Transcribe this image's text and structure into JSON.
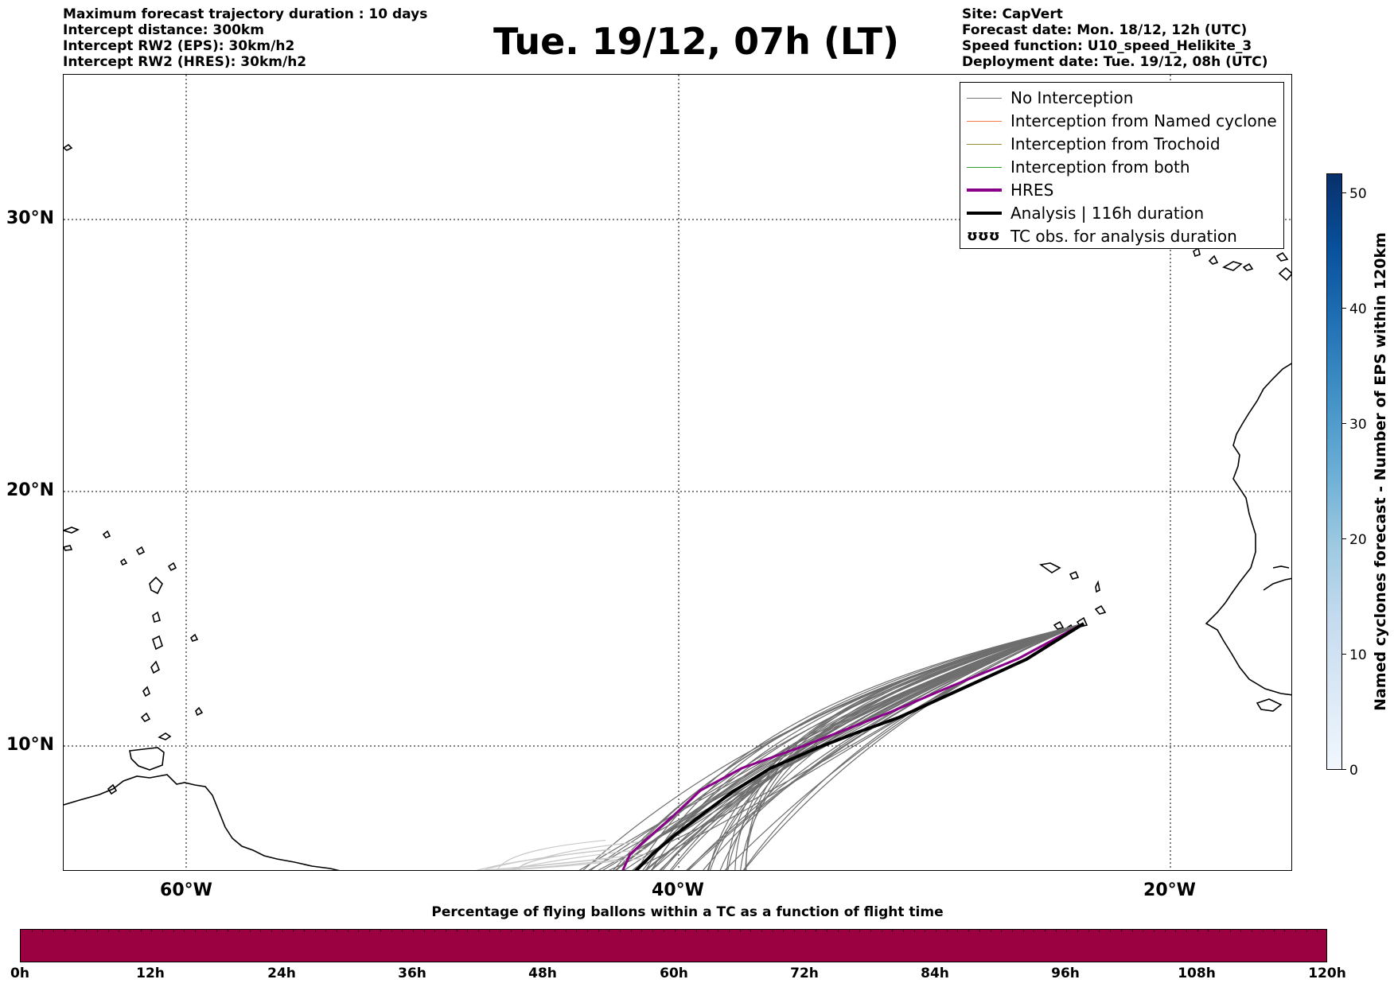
{
  "header": {
    "left_lines": [
      "Maximum forecast trajectory duration : 10 days",
      "Intercept distance: 300km",
      "Intercept RW2 (EPS):  30km/h2",
      "Intercept RW2 (HRES): 30km/h2"
    ],
    "title": "Tue. 19/12, 07h (LT)",
    "right_lines": [
      "Site: CapVert",
      "Forecast date: Mon. 18/12, 12h (UTC)",
      "Speed function: U10_speed_Helikite_3",
      "Deployment date: Tue. 19/12, 08h (UTC)"
    ]
  },
  "map": {
    "lat_labels": [
      "30°N",
      "20°N",
      "10°N"
    ],
    "lon_labels": [
      "60°W",
      "40°W",
      "20°W"
    ],
    "gridlines": "dotted"
  },
  "legend": {
    "items": [
      {
        "label": "No Interception",
        "color": "#777777",
        "style": "thin"
      },
      {
        "label": "Interception from Named cyclone",
        "color": "#f4794a",
        "style": "thin"
      },
      {
        "label": "Interception from Trochoid",
        "color": "#9b8c2e",
        "style": "thin"
      },
      {
        "label": "Interception from both",
        "color": "#2ca02c",
        "style": "thin"
      },
      {
        "label": "HRES",
        "color": "#8b008b",
        "style": "thick"
      },
      {
        "label": "Analysis | 116h duration",
        "color": "#000000",
        "style": "thick"
      },
      {
        "label": "TC obs. for analysis duration",
        "color": "#000000",
        "style": "symbol",
        "symbol": "ʊʊʊ"
      }
    ]
  },
  "colorbar_vertical": {
    "title": "Named cyclones forecast - Number of EPS within 120km",
    "ticks": [
      "0",
      "10",
      "20",
      "30",
      "40",
      "50"
    ]
  },
  "colorbar_horizontal": {
    "title": "Percentage of flying ballons within a TC as a function of flight time",
    "ticks": [
      "0h",
      "12h",
      "24h",
      "36h",
      "48h",
      "60h",
      "72h",
      "84h",
      "96h",
      "108h",
      "120h"
    ],
    "color": "#9b0040"
  }
}
